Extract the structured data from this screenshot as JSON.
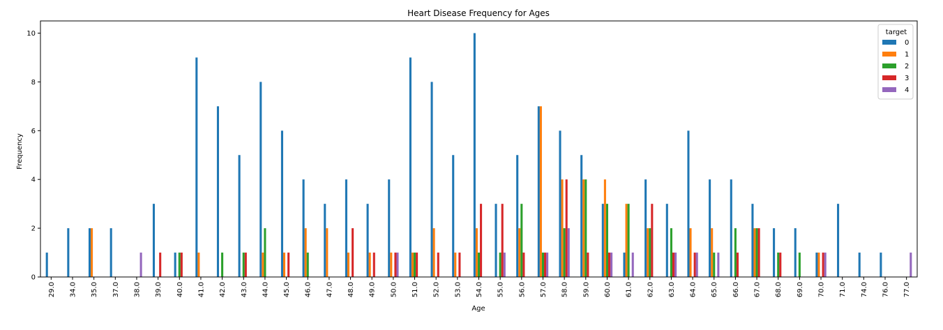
{
  "chart_data": {
    "type": "bar",
    "title": "Heart Disease Frequency for Ages",
    "xlabel": "Age",
    "ylabel": "Frequency",
    "ylim": [
      0,
      10.5
    ],
    "yticks": [
      "0",
      "2",
      "4",
      "6",
      "8",
      "10"
    ],
    "grid": false,
    "legend": {
      "title": "target",
      "placement": "top-right"
    },
    "categories": [
      "29.0",
      "34.0",
      "35.0",
      "37.0",
      "38.0",
      "39.0",
      "40.0",
      "41.0",
      "42.0",
      "43.0",
      "44.0",
      "45.0",
      "46.0",
      "47.0",
      "48.0",
      "49.0",
      "50.0",
      "51.0",
      "52.0",
      "53.0",
      "54.0",
      "55.0",
      "56.0",
      "57.0",
      "58.0",
      "59.0",
      "60.0",
      "61.0",
      "62.0",
      "63.0",
      "64.0",
      "65.0",
      "66.0",
      "67.0",
      "68.0",
      "69.0",
      "70.0",
      "71.0",
      "74.0",
      "76.0",
      "77.0"
    ],
    "series": [
      {
        "name": "0",
        "color": "#1f77b4",
        "values": [
          1,
          2,
          2,
          2,
          0,
          3,
          1,
          9,
          7,
          5,
          8,
          6,
          4,
          3,
          4,
          3,
          4,
          9,
          8,
          5,
          10,
          3,
          5,
          7,
          6,
          5,
          3,
          1,
          4,
          3,
          6,
          4,
          4,
          3,
          2,
          2,
          1,
          3,
          1,
          1,
          0
        ]
      },
      {
        "name": "1",
        "color": "#ff7f0e",
        "values": [
          0,
          0,
          2,
          0,
          0,
          0,
          0,
          1,
          0,
          0,
          1,
          1,
          2,
          2,
          1,
          1,
          1,
          1,
          2,
          1,
          2,
          0,
          2,
          7,
          4,
          4,
          4,
          3,
          2,
          0,
          2,
          2,
          0,
          2,
          0,
          0,
          1,
          0,
          0,
          0,
          0
        ]
      },
      {
        "name": "2",
        "color": "#2ca02c",
        "values": [
          0,
          0,
          0,
          0,
          0,
          0,
          1,
          0,
          1,
          1,
          2,
          0,
          1,
          0,
          0,
          0,
          0,
          1,
          0,
          0,
          1,
          1,
          3,
          1,
          2,
          4,
          3,
          3,
          2,
          2,
          0,
          1,
          2,
          2,
          1,
          1,
          0,
          0,
          0,
          0,
          0
        ]
      },
      {
        "name": "3",
        "color": "#d62728",
        "values": [
          0,
          0,
          0,
          0,
          0,
          1,
          1,
          0,
          0,
          1,
          0,
          1,
          0,
          0,
          2,
          1,
          1,
          1,
          1,
          1,
          3,
          3,
          1,
          1,
          4,
          1,
          1,
          0,
          3,
          1,
          1,
          0,
          1,
          2,
          1,
          0,
          1,
          0,
          0,
          0,
          0
        ]
      },
      {
        "name": "4",
        "color": "#9467bd",
        "values": [
          0,
          0,
          0,
          0,
          1,
          0,
          0,
          0,
          0,
          0,
          0,
          0,
          0,
          0,
          0,
          0,
          1,
          0,
          0,
          0,
          0,
          1,
          0,
          1,
          2,
          0,
          1,
          1,
          0,
          1,
          1,
          1,
          0,
          0,
          0,
          0,
          1,
          0,
          0,
          0,
          1
        ]
      }
    ]
  }
}
